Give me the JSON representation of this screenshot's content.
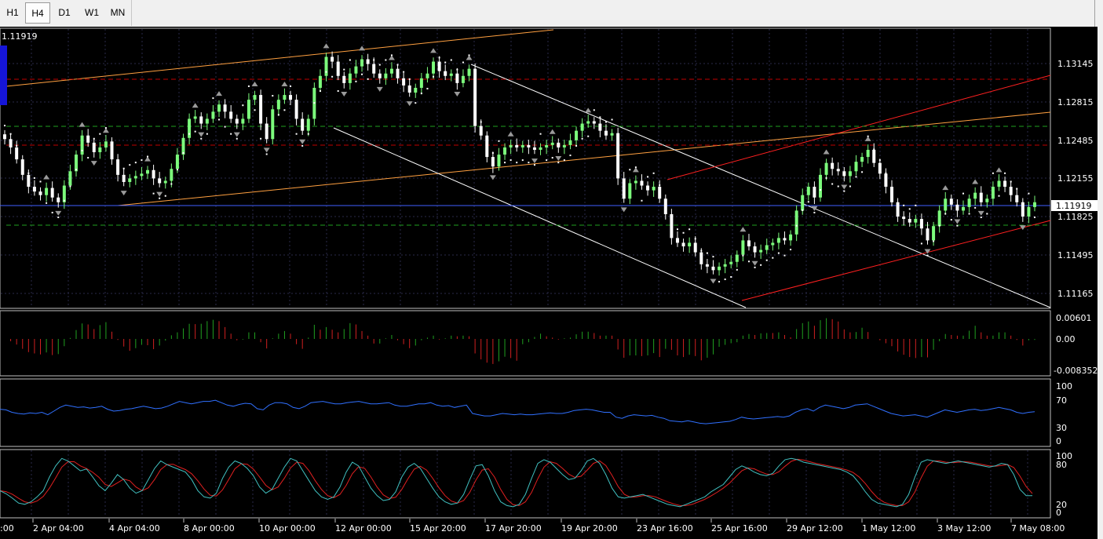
{
  "toolbar": {
    "timeframes": [
      {
        "label": "H1",
        "active": false
      },
      {
        "label": "H4",
        "active": true
      },
      {
        "label": "D1",
        "active": false
      },
      {
        "label": "W1",
        "active": false
      },
      {
        "label": "MN",
        "active": false
      }
    ]
  },
  "price_pane": {
    "top_label": "1.11919",
    "current_price_label": "1.11919",
    "price_ticks": [
      "1.13145",
      "1.12815",
      "1.12485",
      "1.12155",
      "1.11825",
      "1.11495",
      "1.11165"
    ]
  },
  "oscillator_pane": {
    "ticks": [
      "0.00601",
      "0.00",
      "-0.008352"
    ]
  },
  "rsi_pane": {
    "ticks": [
      "100",
      "70",
      "30",
      "0"
    ]
  },
  "stoch_pane": {
    "ticks": [
      "100",
      "80",
      "20",
      "0"
    ]
  },
  "time_labels": [
    "2 Apr 04:00",
    "4 Apr 04:00",
    "8 Apr 00:00",
    "10 Apr 00:00",
    "12 Apr 00:00",
    "15 Apr 20:00",
    "17 Apr 20:00",
    "19 Apr 20:00",
    "23 Apr 16:00",
    "25 Apr 16:00",
    "29 Apr 12:00",
    "1 May 12:00",
    "3 May 12:00",
    "7 May 08:00"
  ],
  "time_label_left_fragment": ":00",
  "colors": {
    "bull_candle": "#7cfc7c",
    "bear_candle": "#ffffff",
    "grid": "#2a2a4a",
    "channel_white": "#ffffff",
    "channel_red": "#ff2020",
    "channel_orange": "#ffa040",
    "dash_red": "#c00000",
    "dash_green": "#20a020",
    "current_price_line": "#4060ff",
    "rsi_line": "#3070ff",
    "stoch_main": "#40c0c0",
    "stoch_signal": "#e02020",
    "osc_up": "#20a020",
    "osc_down": "#d02020"
  },
  "chart_data": {
    "type": "candlestick",
    "symbol_price_range": [
      1.1103,
      1.1338
    ],
    "closes": [
      1.1245,
      1.1238,
      1.1228,
      1.1215,
      1.1205,
      1.1201,
      1.1198,
      1.1204,
      1.1196,
      1.1192,
      1.1206,
      1.1218,
      1.1232,
      1.1248,
      1.1242,
      1.1234,
      1.1238,
      1.1243,
      1.1228,
      1.1215,
      1.1209,
      1.1212,
      1.1214,
      1.1216,
      1.1219,
      1.1212,
      1.1208,
      1.121,
      1.122,
      1.1232,
      1.1246,
      1.1262,
      1.1264,
      1.1258,
      1.1262,
      1.1268,
      1.1274,
      1.1268,
      1.1262,
      1.1258,
      1.1262,
      1.1278,
      1.1282,
      1.1258,
      1.1245,
      1.127,
      1.1278,
      1.1282,
      1.1278,
      1.1262,
      1.1252,
      1.1262,
      1.1288,
      1.1298,
      1.1314,
      1.131,
      1.1298,
      1.1292,
      1.13,
      1.1306,
      1.1312,
      1.1308,
      1.13,
      1.1296,
      1.13,
      1.1304,
      1.1296,
      1.129,
      1.1284,
      1.1288,
      1.1296,
      1.13,
      1.131,
      1.1302,
      1.1298,
      1.13,
      1.1292,
      1.1298,
      1.1304,
      1.1256,
      1.1248,
      1.123,
      1.1222,
      1.1232,
      1.1238,
      1.124,
      1.1238,
      1.124,
      1.1238,
      1.1236,
      1.1238,
      1.124,
      1.1242,
      1.1238,
      1.124,
      1.1244,
      1.1252,
      1.1258,
      1.126,
      1.1258,
      1.1252,
      1.1248,
      1.125,
      1.1212,
      1.1195,
      1.1208,
      1.121,
      1.1206,
      1.1202,
      1.1205,
      1.1195,
      1.1182,
      1.1162,
      1.1158,
      1.1155,
      1.1158,
      1.115,
      1.114,
      1.1138,
      1.1135,
      1.1138,
      1.114,
      1.1142,
      1.1148,
      1.116,
      1.1155,
      1.115,
      1.1152,
      1.1156,
      1.1158,
      1.1162,
      1.116,
      1.1165,
      1.1185,
      1.1198,
      1.1205,
      1.1196,
      1.1215,
      1.1225,
      1.122,
      1.1218,
      1.1214,
      1.1218,
      1.1226,
      1.123,
      1.1236,
      1.1225,
      1.1216,
      1.1205,
      1.1192,
      1.118,
      1.1178,
      1.1175,
      1.1178,
      1.117,
      1.116,
      1.1172,
      1.1185,
      1.1195,
      1.119,
      1.1185,
      1.1188,
      1.1195,
      1.12,
      1.1192,
      1.1195,
      1.1205,
      1.121,
      1.1205,
      1.1198,
      1.1192,
      1.118,
      1.1188,
      1.1192
    ],
    "rsi_values": [
      55,
      54,
      50,
      48,
      47,
      49,
      48,
      50,
      46,
      52,
      58,
      62,
      60,
      58,
      59,
      57,
      58,
      60,
      55,
      52,
      53,
      55,
      56,
      58,
      60,
      58,
      56,
      57,
      60,
      64,
      68,
      66,
      64,
      66,
      68,
      68,
      70,
      66,
      62,
      60,
      63,
      65,
      64,
      56,
      54,
      62,
      66,
      66,
      64,
      58,
      56,
      60,
      66,
      67,
      68,
      66,
      64,
      64,
      66,
      67,
      68,
      66,
      64,
      64,
      65,
      66,
      62,
      60,
      60,
      62,
      64,
      64,
      66,
      62,
      60,
      61,
      58,
      60,
      62,
      48,
      46,
      44,
      44,
      46,
      48,
      47,
      46,
      47,
      46,
      46,
      47,
      48,
      49,
      48,
      48,
      50,
      53,
      54,
      55,
      54,
      52,
      50,
      50,
      42,
      40,
      44,
      46,
      45,
      44,
      45,
      42,
      40,
      36,
      35,
      34,
      36,
      34,
      32,
      31,
      32,
      33,
      34,
      35,
      38,
      42,
      40,
      39,
      40,
      41,
      42,
      43,
      42,
      44,
      50,
      54,
      56,
      52,
      58,
      62,
      60,
      58,
      56,
      58,
      62,
      63,
      64,
      60,
      56,
      52,
      48,
      46,
      44,
      45,
      46,
      44,
      42,
      46,
      50,
      54,
      52,
      50,
      52,
      54,
      55,
      53,
      54,
      56,
      58,
      56,
      54,
      50,
      48,
      50,
      51
    ],
    "stoch_k": [
      40,
      35,
      28,
      20,
      18,
      22,
      30,
      40,
      62,
      80,
      92,
      88,
      80,
      72,
      75,
      62,
      48,
      40,
      52,
      66,
      58,
      44,
      36,
      40,
      58,
      76,
      88,
      82,
      78,
      74,
      70,
      58,
      40,
      30,
      28,
      36,
      60,
      78,
      88,
      84,
      76,
      64,
      46,
      36,
      42,
      60,
      78,
      92,
      88,
      72,
      56,
      40,
      30,
      26,
      30,
      46,
      70,
      86,
      80,
      62,
      44,
      32,
      24,
      26,
      38,
      62,
      78,
      84,
      76,
      60,
      44,
      30,
      22,
      18,
      20,
      34,
      58,
      80,
      82,
      64,
      40,
      22,
      16,
      14,
      18,
      34,
      60,
      84,
      90,
      86,
      76,
      66,
      58,
      60,
      72,
      88,
      92,
      84,
      66,
      44,
      30,
      28,
      30,
      32,
      34,
      30,
      26,
      22,
      18,
      16,
      14,
      18,
      22,
      26,
      30,
      38,
      44,
      50,
      62,
      74,
      80,
      76,
      70,
      66,
      64,
      68,
      80,
      90,
      92,
      90,
      86,
      84,
      82,
      80,
      78,
      76,
      74,
      70,
      64,
      52,
      38,
      26,
      20,
      18,
      16,
      14,
      18,
      34,
      62,
      86,
      90,
      88,
      86,
      84,
      86,
      88,
      86,
      84,
      82,
      80,
      78,
      80,
      84,
      82,
      66,
      42,
      32,
      32
    ]
  }
}
